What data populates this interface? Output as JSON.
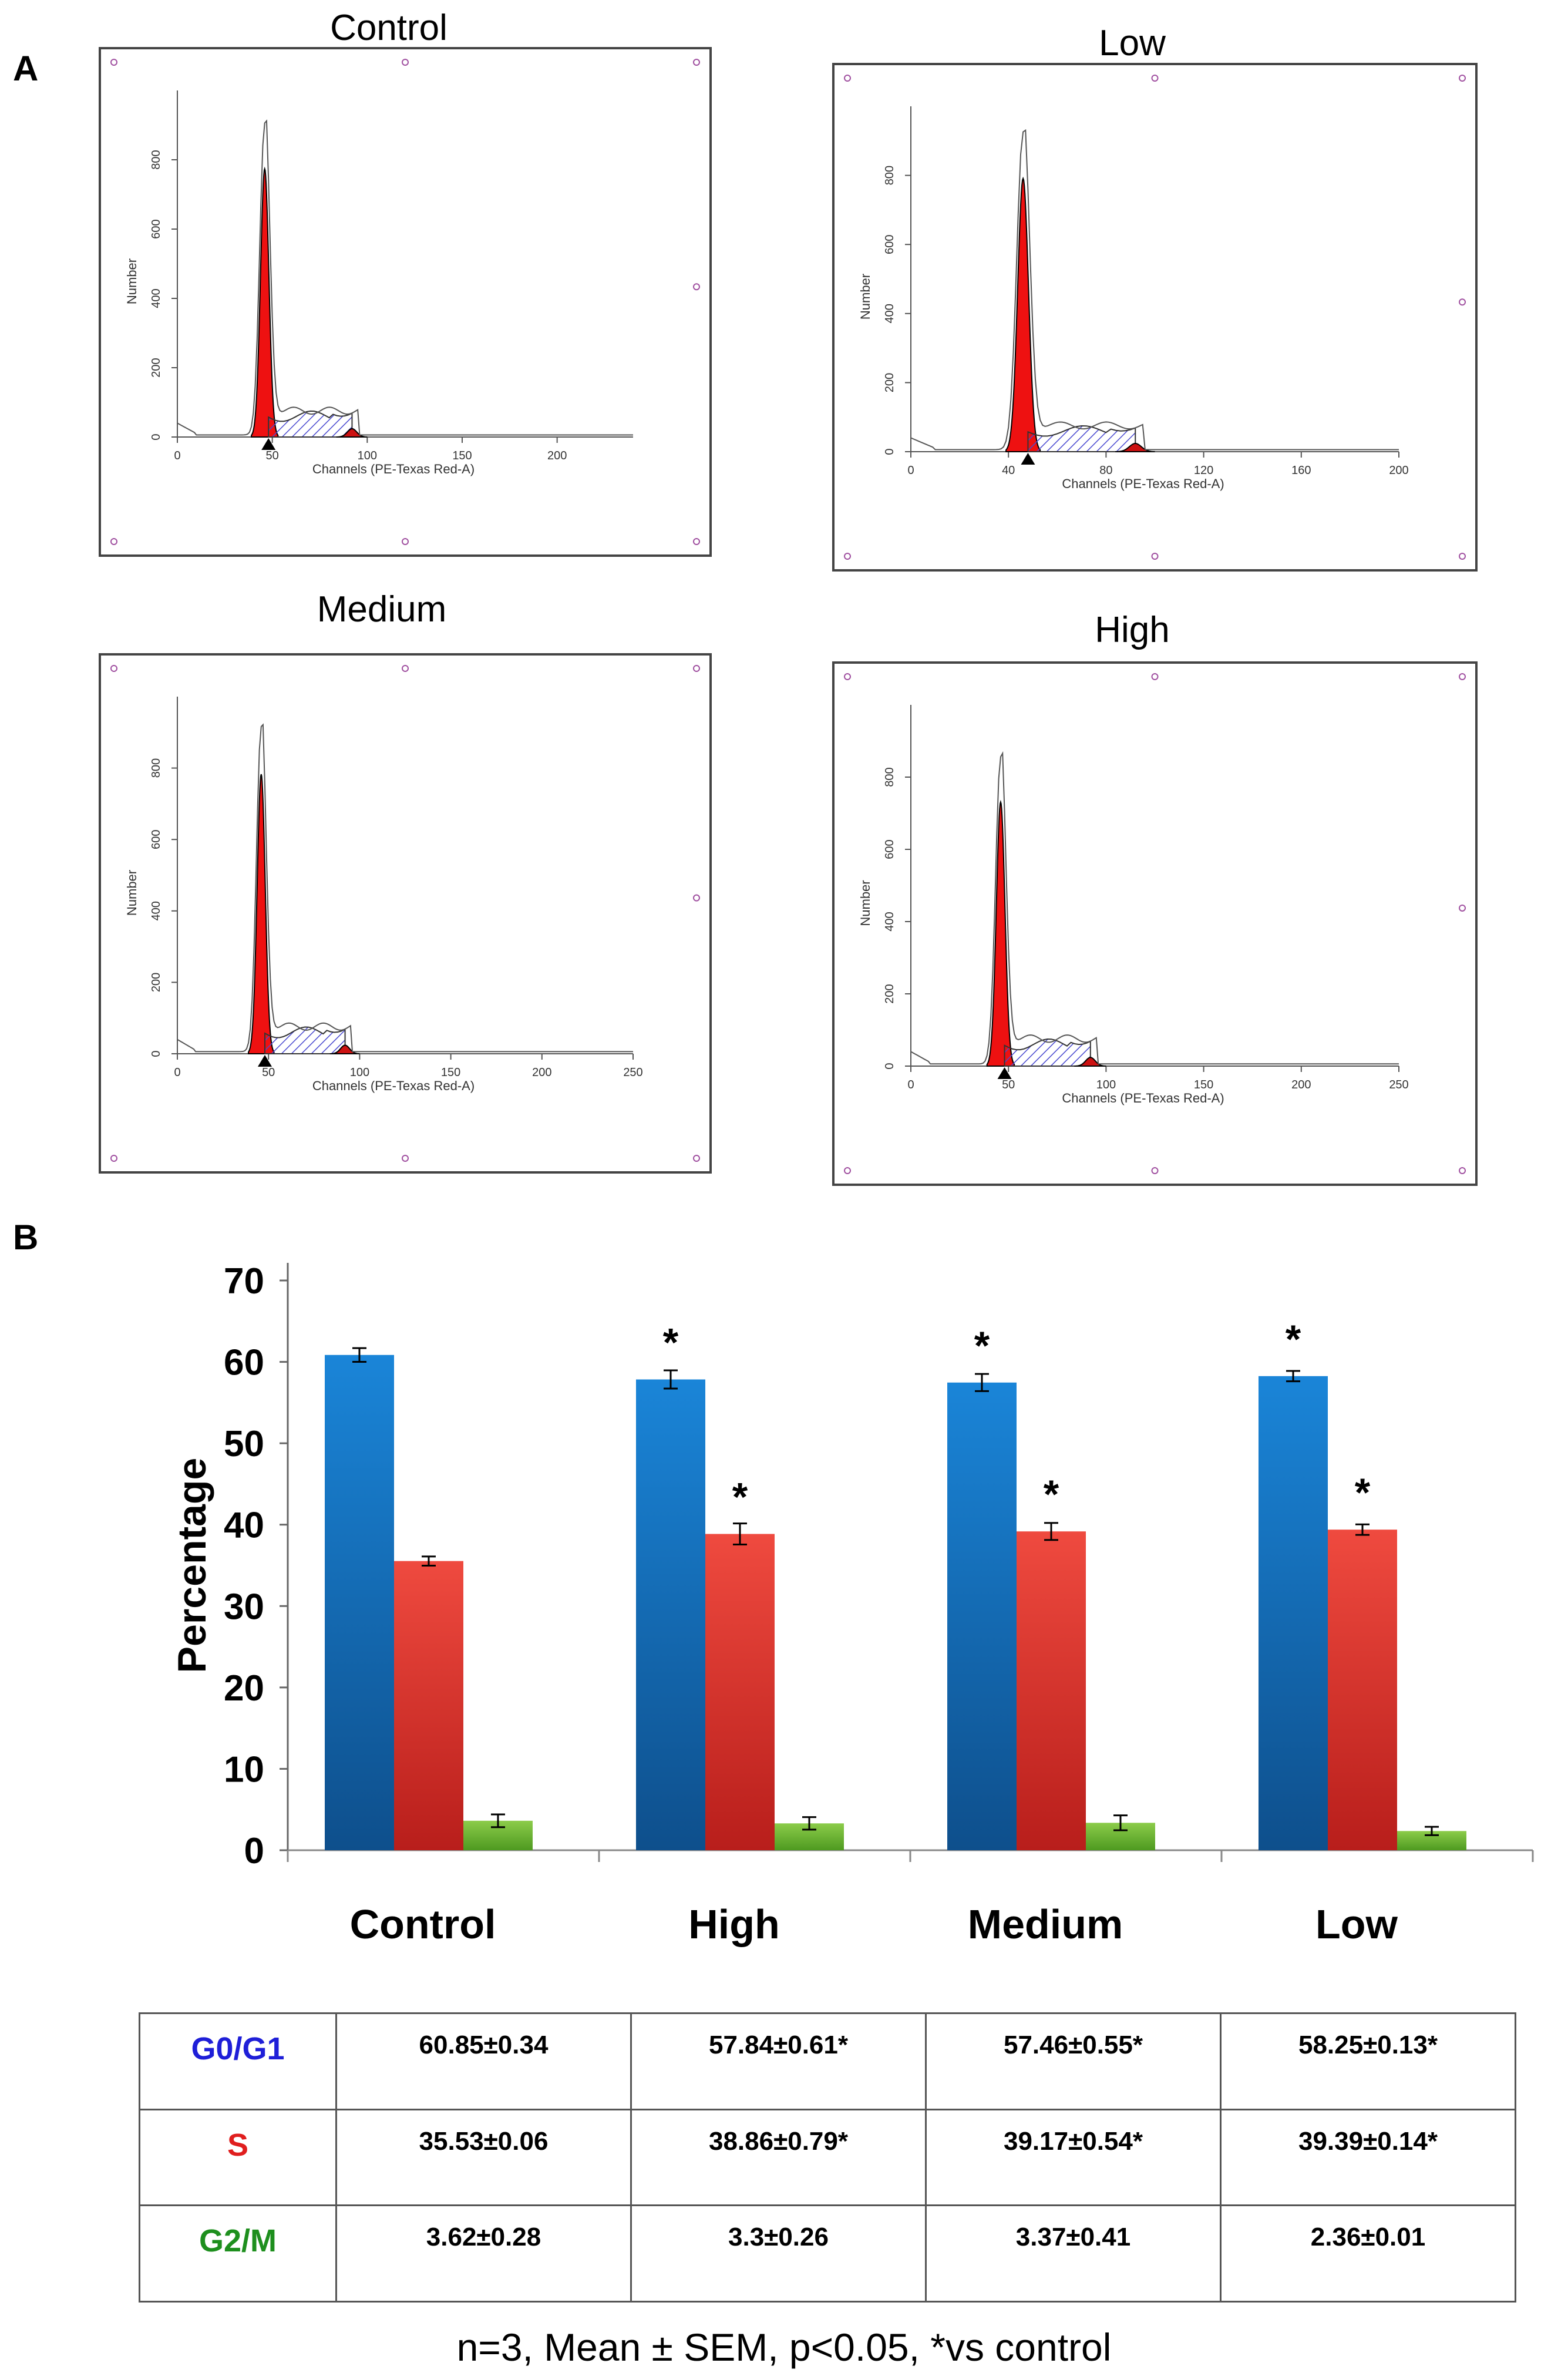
{
  "panel_a_label": "A",
  "panel_b_label": "B",
  "histograms": [
    {
      "id": "control",
      "title": "Control",
      "y_label": "Number",
      "x_label": "Channels (PE-Texas Red-A)",
      "y_ticks": [
        0,
        200,
        400,
        600,
        800
      ],
      "x_ticks": [
        0,
        50,
        100,
        150,
        200
      ],
      "x_max": 240,
      "peak": 900
    },
    {
      "id": "low",
      "title": "Low",
      "y_label": "Number",
      "x_label": "Channels (PE-Texas Red-A)",
      "y_ticks": [
        0,
        200,
        400,
        600,
        800
      ],
      "x_ticks": [
        0,
        40,
        80,
        120,
        160,
        200
      ],
      "x_max": 200,
      "peak": 920
    },
    {
      "id": "medium",
      "title": "Medium",
      "y_label": "Number",
      "x_label": "Channels (PE-Texas Red-A)",
      "y_ticks": [
        0,
        200,
        400,
        600,
        800
      ],
      "x_ticks": [
        0,
        50,
        100,
        150,
        200,
        250
      ],
      "x_max": 250,
      "peak": 910
    },
    {
      "id": "high",
      "title": "High",
      "y_label": "Number",
      "x_label": "Channels (PE-Texas Red-A)",
      "y_ticks": [
        0,
        200,
        400,
        600,
        800
      ],
      "x_ticks": [
        0,
        50,
        100,
        150,
        200,
        250
      ],
      "x_max": 250,
      "peak": 850
    }
  ],
  "chart_data": {
    "type": "bar",
    "title": "",
    "xlabel": "",
    "ylabel": "Percentage",
    "ylim": [
      0,
      70
    ],
    "yticks": [
      0,
      10,
      20,
      30,
      40,
      50,
      60,
      70
    ],
    "categories": [
      "Control",
      "High",
      "Medium",
      "Low"
    ],
    "series": [
      {
        "name": "G0/G1",
        "color": "#1a73c8",
        "values": [
          60.85,
          57.84,
          57.46,
          58.25
        ],
        "errors": [
          0.34,
          0.61,
          0.55,
          0.13
        ],
        "significant": [
          false,
          true,
          true,
          true
        ]
      },
      {
        "name": "S",
        "color": "#e0322c",
        "values": [
          35.53,
          38.86,
          39.17,
          39.39
        ],
        "errors": [
          0.06,
          0.79,
          0.54,
          0.14
        ],
        "significant": [
          false,
          true,
          true,
          true
        ]
      },
      {
        "name": "G2/M",
        "color": "#7cbf3a",
        "values": [
          3.62,
          3.3,
          3.37,
          2.36
        ],
        "errors": [
          0.28,
          0.26,
          0.41,
          0.01
        ],
        "significant": [
          false,
          false,
          false,
          false
        ]
      }
    ],
    "significance_marker": "*"
  },
  "table": {
    "rows": [
      {
        "label": "G0/G1",
        "color": "#1f1fd8",
        "cells": [
          "60.85±0.34",
          "57.84±0.61*",
          "57.46±0.55*",
          "58.25±0.13*"
        ]
      },
      {
        "label": "S",
        "color": "#e01e1e",
        "cells": [
          "35.53±0.06",
          "38.86±0.79*",
          "39.17±0.54*",
          "39.39±0.14*"
        ]
      },
      {
        "label": "G2/M",
        "color": "#1e8f1e",
        "cells": [
          "3.62±0.28",
          "3.3±0.26",
          "3.37±0.41",
          "2.36±0.01"
        ]
      }
    ]
  },
  "footnote": "n=3,  Mean ± SEM, p<0.05, *vs control"
}
